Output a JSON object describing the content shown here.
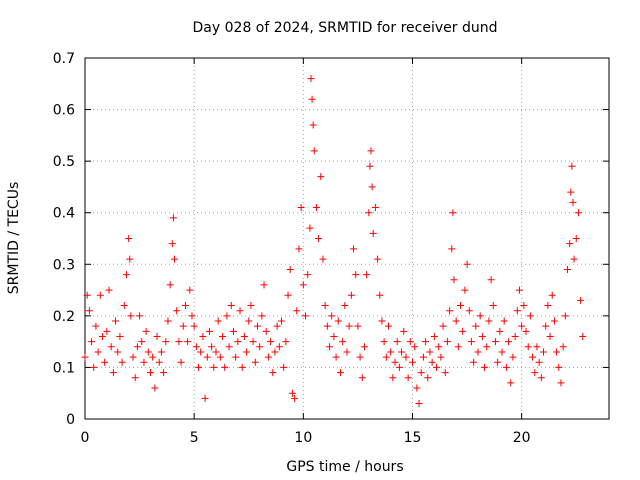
{
  "chart_data": {
    "type": "scatter",
    "title": "Day 028 of 2024, SRMTID for receiver dund",
    "xlabel": "GPS time / hours",
    "ylabel": "SRMTID / TECUs",
    "xlim": [
      0,
      24
    ],
    "ylim": [
      0,
      0.7
    ],
    "x_ticks": [
      "0",
      "5",
      "10",
      "15",
      "20"
    ],
    "x_tick_values": [
      0,
      5,
      10,
      15,
      20
    ],
    "y_ticks": [
      "0",
      "0.1",
      "0.2",
      "0.3",
      "0.4",
      "0.5",
      "0.6",
      "0.7"
    ],
    "y_tick_values": [
      0,
      0.1,
      0.2,
      0.3,
      0.4,
      0.5,
      0.6,
      0.7
    ],
    "grid": true,
    "marker": "+",
    "color": "#ff0000",
    "series": [
      {
        "name": "SRMTID",
        "points": [
          [
            0.0,
            0.12
          ],
          [
            0.1,
            0.24
          ],
          [
            0.2,
            0.21
          ],
          [
            0.3,
            0.15
          ],
          [
            0.4,
            0.1
          ],
          [
            0.5,
            0.18
          ],
          [
            0.6,
            0.13
          ],
          [
            0.7,
            0.24
          ],
          [
            0.8,
            0.16
          ],
          [
            0.9,
            0.11
          ],
          [
            1.0,
            0.17
          ],
          [
            1.1,
            0.25
          ],
          [
            1.2,
            0.14
          ],
          [
            1.3,
            0.09
          ],
          [
            1.4,
            0.19
          ],
          [
            1.5,
            0.13
          ],
          [
            1.6,
            0.16
          ],
          [
            1.7,
            0.11
          ],
          [
            1.8,
            0.22
          ],
          [
            1.9,
            0.28
          ],
          [
            2.0,
            0.35
          ],
          [
            2.05,
            0.31
          ],
          [
            2.1,
            0.2
          ],
          [
            2.2,
            0.12
          ],
          [
            2.3,
            0.08
          ],
          [
            2.4,
            0.14
          ],
          [
            2.5,
            0.2
          ],
          [
            2.6,
            0.15
          ],
          [
            2.7,
            0.11
          ],
          [
            2.8,
            0.17
          ],
          [
            2.9,
            0.13
          ],
          [
            3.0,
            0.09
          ],
          [
            3.1,
            0.12
          ],
          [
            3.2,
            0.06
          ],
          [
            3.3,
            0.16
          ],
          [
            3.4,
            0.11
          ],
          [
            3.5,
            0.13
          ],
          [
            3.6,
            0.09
          ],
          [
            3.7,
            0.15
          ],
          [
            3.8,
            0.19
          ],
          [
            3.9,
            0.26
          ],
          [
            4.0,
            0.34
          ],
          [
            4.05,
            0.39
          ],
          [
            4.1,
            0.31
          ],
          [
            4.2,
            0.21
          ],
          [
            4.3,
            0.15
          ],
          [
            4.4,
            0.11
          ],
          [
            4.5,
            0.18
          ],
          [
            4.6,
            0.22
          ],
          [
            4.7,
            0.15
          ],
          [
            4.8,
            0.25
          ],
          [
            4.9,
            0.2
          ],
          [
            5.0,
            0.18
          ],
          [
            5.1,
            0.14
          ],
          [
            5.2,
            0.1
          ],
          [
            5.3,
            0.13
          ],
          [
            5.4,
            0.16
          ],
          [
            5.5,
            0.04
          ],
          [
            5.6,
            0.12
          ],
          [
            5.7,
            0.17
          ],
          [
            5.8,
            0.14
          ],
          [
            5.9,
            0.1
          ],
          [
            6.0,
            0.13
          ],
          [
            6.1,
            0.19
          ],
          [
            6.2,
            0.12
          ],
          [
            6.3,
            0.16
          ],
          [
            6.4,
            0.1
          ],
          [
            6.5,
            0.2
          ],
          [
            6.6,
            0.14
          ],
          [
            6.7,
            0.22
          ],
          [
            6.8,
            0.17
          ],
          [
            6.9,
            0.12
          ],
          [
            7.0,
            0.15
          ],
          [
            7.1,
            0.21
          ],
          [
            7.2,
            0.1
          ],
          [
            7.3,
            0.16
          ],
          [
            7.4,
            0.13
          ],
          [
            7.5,
            0.19
          ],
          [
            7.6,
            0.22
          ],
          [
            7.7,
            0.15
          ],
          [
            7.8,
            0.11
          ],
          [
            7.9,
            0.18
          ],
          [
            8.0,
            0.14
          ],
          [
            8.1,
            0.2
          ],
          [
            8.2,
            0.26
          ],
          [
            8.3,
            0.17
          ],
          [
            8.4,
            0.12
          ],
          [
            8.5,
            0.15
          ],
          [
            8.6,
            0.09
          ],
          [
            8.7,
            0.13
          ],
          [
            8.8,
            0.18
          ],
          [
            8.9,
            0.14
          ],
          [
            9.0,
            0.19
          ],
          [
            9.1,
            0.1
          ],
          [
            9.2,
            0.15
          ],
          [
            9.3,
            0.24
          ],
          [
            9.4,
            0.29
          ],
          [
            9.5,
            0.05
          ],
          [
            9.6,
            0.04
          ],
          [
            9.7,
            0.21
          ],
          [
            9.8,
            0.33
          ],
          [
            9.9,
            0.41
          ],
          [
            10.0,
            0.26
          ],
          [
            10.1,
            0.2
          ],
          [
            10.2,
            0.28
          ],
          [
            10.3,
            0.37
          ],
          [
            10.35,
            0.66
          ],
          [
            10.4,
            0.62
          ],
          [
            10.45,
            0.57
          ],
          [
            10.5,
            0.52
          ],
          [
            10.6,
            0.41
          ],
          [
            10.7,
            0.35
          ],
          [
            10.8,
            0.47
          ],
          [
            10.9,
            0.31
          ],
          [
            11.0,
            0.22
          ],
          [
            11.1,
            0.18
          ],
          [
            11.2,
            0.14
          ],
          [
            11.3,
            0.2
          ],
          [
            11.4,
            0.16
          ],
          [
            11.5,
            0.12
          ],
          [
            11.6,
            0.19
          ],
          [
            11.7,
            0.09
          ],
          [
            11.8,
            0.15
          ],
          [
            11.9,
            0.22
          ],
          [
            12.0,
            0.13
          ],
          [
            12.1,
            0.18
          ],
          [
            12.2,
            0.24
          ],
          [
            12.3,
            0.33
          ],
          [
            12.4,
            0.28
          ],
          [
            12.5,
            0.18
          ],
          [
            12.6,
            0.12
          ],
          [
            12.7,
            0.08
          ],
          [
            12.8,
            0.14
          ],
          [
            12.9,
            0.28
          ],
          [
            13.0,
            0.4
          ],
          [
            13.05,
            0.49
          ],
          [
            13.1,
            0.52
          ],
          [
            13.15,
            0.45
          ],
          [
            13.2,
            0.36
          ],
          [
            13.3,
            0.41
          ],
          [
            13.4,
            0.31
          ],
          [
            13.5,
            0.24
          ],
          [
            13.6,
            0.19
          ],
          [
            13.7,
            0.15
          ],
          [
            13.8,
            0.12
          ],
          [
            13.9,
            0.18
          ],
          [
            14.0,
            0.13
          ],
          [
            14.1,
            0.08
          ],
          [
            14.2,
            0.11
          ],
          [
            14.3,
            0.15
          ],
          [
            14.4,
            0.1
          ],
          [
            14.5,
            0.13
          ],
          [
            14.6,
            0.17
          ],
          [
            14.7,
            0.12
          ],
          [
            14.8,
            0.08
          ],
          [
            14.9,
            0.15
          ],
          [
            15.0,
            0.11
          ],
          [
            15.1,
            0.14
          ],
          [
            15.2,
            0.06
          ],
          [
            15.3,
            0.03
          ],
          [
            15.4,
            0.09
          ],
          [
            15.5,
            0.12
          ],
          [
            15.6,
            0.15
          ],
          [
            15.7,
            0.08
          ],
          [
            15.8,
            0.13
          ],
          [
            15.9,
            0.11
          ],
          [
            16.0,
            0.16
          ],
          [
            16.1,
            0.1
          ],
          [
            16.2,
            0.14
          ],
          [
            16.3,
            0.12
          ],
          [
            16.4,
            0.18
          ],
          [
            16.5,
            0.09
          ],
          [
            16.6,
            0.15
          ],
          [
            16.7,
            0.21
          ],
          [
            16.8,
            0.33
          ],
          [
            16.85,
            0.4
          ],
          [
            16.9,
            0.27
          ],
          [
            17.0,
            0.19
          ],
          [
            17.1,
            0.14
          ],
          [
            17.2,
            0.22
          ],
          [
            17.3,
            0.17
          ],
          [
            17.4,
            0.25
          ],
          [
            17.5,
            0.3
          ],
          [
            17.6,
            0.21
          ],
          [
            17.7,
            0.15
          ],
          [
            17.8,
            0.11
          ],
          [
            17.9,
            0.18
          ],
          [
            18.0,
            0.13
          ],
          [
            18.1,
            0.2
          ],
          [
            18.2,
            0.16
          ],
          [
            18.3,
            0.1
          ],
          [
            18.4,
            0.14
          ],
          [
            18.5,
            0.19
          ],
          [
            18.6,
            0.27
          ],
          [
            18.7,
            0.22
          ],
          [
            18.8,
            0.15
          ],
          [
            18.9,
            0.11
          ],
          [
            19.0,
            0.17
          ],
          [
            19.1,
            0.13
          ],
          [
            19.2,
            0.19
          ],
          [
            19.3,
            0.1
          ],
          [
            19.4,
            0.15
          ],
          [
            19.5,
            0.07
          ],
          [
            19.6,
            0.12
          ],
          [
            19.7,
            0.16
          ],
          [
            19.8,
            0.21
          ],
          [
            19.9,
            0.25
          ],
          [
            20.0,
            0.18
          ],
          [
            20.1,
            0.22
          ],
          [
            20.2,
            0.17
          ],
          [
            20.3,
            0.14
          ],
          [
            20.4,
            0.2
          ],
          [
            20.5,
            0.12
          ],
          [
            20.6,
            0.09
          ],
          [
            20.7,
            0.14
          ],
          [
            20.8,
            0.11
          ],
          [
            20.9,
            0.08
          ],
          [
            21.0,
            0.13
          ],
          [
            21.1,
            0.18
          ],
          [
            21.2,
            0.22
          ],
          [
            21.3,
            0.16
          ],
          [
            21.4,
            0.24
          ],
          [
            21.5,
            0.19
          ],
          [
            21.6,
            0.13
          ],
          [
            21.7,
            0.1
          ],
          [
            21.8,
            0.07
          ],
          [
            21.9,
            0.14
          ],
          [
            22.0,
            0.2
          ],
          [
            22.1,
            0.29
          ],
          [
            22.2,
            0.34
          ],
          [
            22.25,
            0.44
          ],
          [
            22.3,
            0.49
          ],
          [
            22.35,
            0.42
          ],
          [
            22.4,
            0.31
          ],
          [
            22.5,
            0.35
          ],
          [
            22.6,
            0.4
          ],
          [
            22.7,
            0.23
          ],
          [
            22.8,
            0.16
          ]
        ]
      }
    ]
  }
}
